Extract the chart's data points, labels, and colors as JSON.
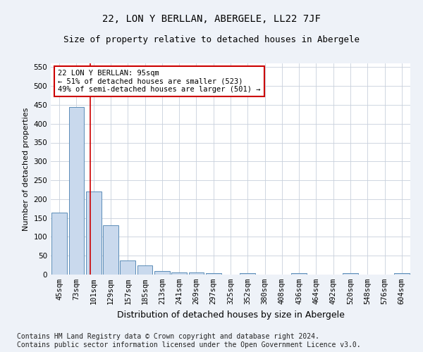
{
  "title": "22, LON Y BERLLAN, ABERGELE, LL22 7JF",
  "subtitle": "Size of property relative to detached houses in Abergele",
  "xlabel": "Distribution of detached houses by size in Abergele",
  "ylabel": "Number of detached properties",
  "categories": [
    "45sqm",
    "73sqm",
    "101sqm",
    "129sqm",
    "157sqm",
    "185sqm",
    "213sqm",
    "241sqm",
    "269sqm",
    "297sqm",
    "325sqm",
    "352sqm",
    "380sqm",
    "408sqm",
    "436sqm",
    "464sqm",
    "492sqm",
    "520sqm",
    "548sqm",
    "576sqm",
    "604sqm"
  ],
  "values": [
    165,
    445,
    220,
    130,
    37,
    25,
    10,
    5,
    5,
    4,
    0,
    4,
    0,
    0,
    4,
    0,
    0,
    4,
    0,
    0,
    4
  ],
  "bar_color": "#c9d9ed",
  "bar_edge_color": "#5b8db8",
  "vline_color": "#cc0000",
  "annotation_text": "22 LON Y BERLLAN: 95sqm\n← 51% of detached houses are smaller (523)\n49% of semi-detached houses are larger (501) →",
  "annotation_box_color": "#ffffff",
  "annotation_box_edge": "#cc0000",
  "ylim": [
    0,
    560
  ],
  "yticks": [
    0,
    50,
    100,
    150,
    200,
    250,
    300,
    350,
    400,
    450,
    500,
    550
  ],
  "footer": "Contains HM Land Registry data © Crown copyright and database right 2024.\nContains public sector information licensed under the Open Government Licence v3.0.",
  "bg_color": "#eef2f8",
  "plot_bg_color": "#ffffff",
  "grid_color": "#c8d0dc",
  "title_fontsize": 10,
  "subtitle_fontsize": 9,
  "footer_fontsize": 7,
  "annotation_fontsize": 7.5,
  "axis_fontsize": 7.5,
  "ylabel_fontsize": 8
}
